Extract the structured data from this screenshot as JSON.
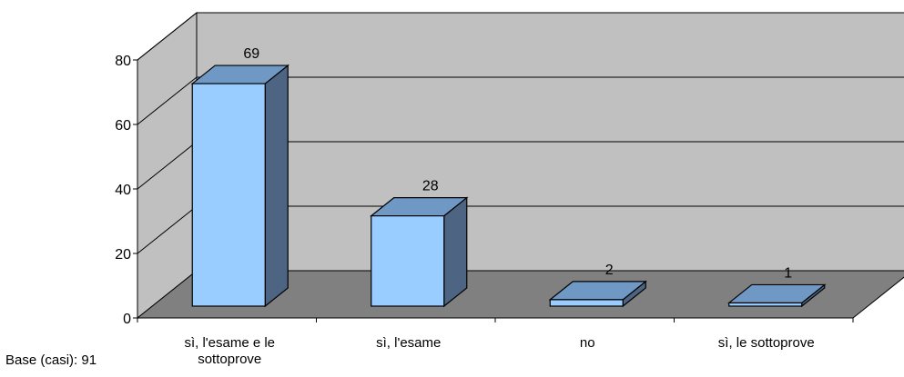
{
  "chart_data": {
    "type": "bar",
    "categories": [
      "sì, l'esame e le sottoprove",
      "sì, l'esame",
      "no",
      "sì, le sottoprove"
    ],
    "values": [
      69,
      28,
      2,
      1
    ],
    "data_labels": [
      "69",
      "28",
      "2",
      "1"
    ],
    "title": "",
    "xlabel": "",
    "ylabel": "",
    "ylim": [
      0,
      80
    ],
    "yticks": [
      "0",
      "20",
      "40",
      "60",
      "80"
    ],
    "grid": true,
    "legend": "none",
    "style": "3d-column"
  },
  "footnote": "Base (casi): 91",
  "colors": {
    "bar_front": "#99CCFF",
    "bar_top": "#6F98C5",
    "bar_side": "#4D6482",
    "back_wall": "#C0C0C0",
    "side_wall": "#C0C0C0",
    "floor": "#808080"
  }
}
